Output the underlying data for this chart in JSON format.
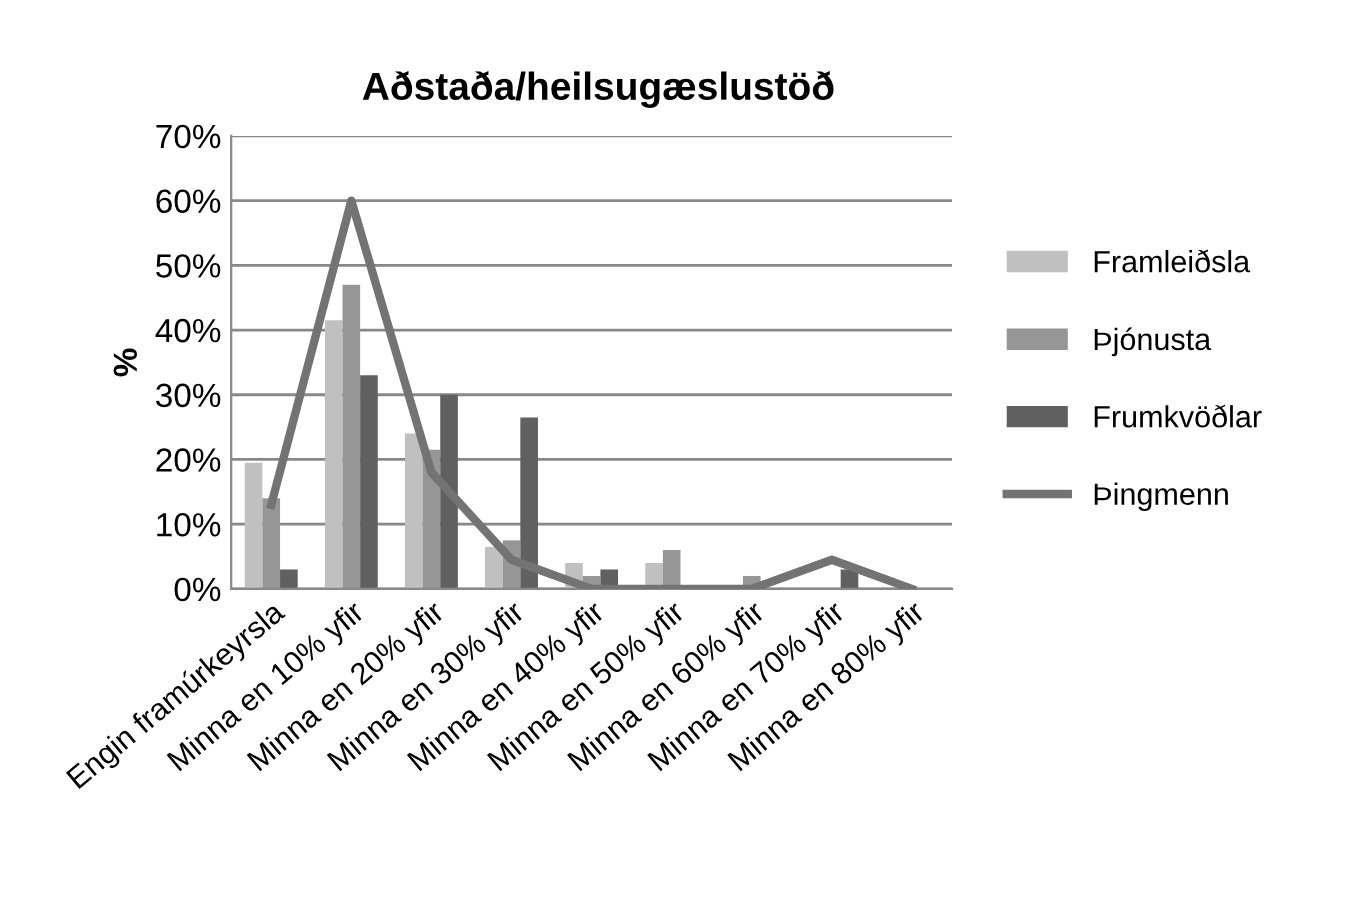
{
  "chart_data": {
    "type": "bar",
    "title": "Aðstaða/heilsugæslustöð",
    "ylabel": "%",
    "categories": [
      "Engin framúrkeyrsla",
      "Minna en 10% yfir",
      "Minna en 20% yfir",
      "Minna en 30% yfir",
      "Minna en 40% yfir",
      "Minna en 50% yfir",
      "Minna en 60% yfir",
      "Minna en 70% yfir",
      "Minna en 80% yfir"
    ],
    "series": [
      {
        "name": "Framleiðsla",
        "color": "#c0c0c0",
        "values": [
          19.5,
          41.5,
          24,
          6.5,
          4,
          4,
          0,
          0,
          0
        ]
      },
      {
        "name": "Þjónusta",
        "color": "#969696",
        "values": [
          14,
          47,
          21.5,
          7.5,
          2,
          6,
          2,
          0,
          0
        ]
      },
      {
        "name": "Frumkvöðlar",
        "color": "#606060",
        "values": [
          3,
          33,
          30,
          26.5,
          3,
          0,
          0,
          3,
          0
        ]
      },
      {
        "name": "Þingmenn",
        "type": "line",
        "color": "#737373",
        "values": [
          13,
          60,
          18,
          4.5,
          0,
          0,
          0,
          4.5,
          0
        ]
      }
    ],
    "ylim": [
      0,
      70
    ],
    "yticks": [
      {
        "value": 0,
        "label": "0%"
      },
      {
        "value": 10,
        "label": "10%"
      },
      {
        "value": 20,
        "label": "20%"
      },
      {
        "value": 30,
        "label": "30%"
      },
      {
        "value": 40,
        "label": "40%"
      },
      {
        "value": 50,
        "label": "50%"
      },
      {
        "value": 60,
        "label": "60%"
      },
      {
        "value": 70,
        "label": "70%"
      }
    ],
    "grid": "y",
    "legend": "right",
    "line_style": "solid",
    "marker": "none"
  }
}
